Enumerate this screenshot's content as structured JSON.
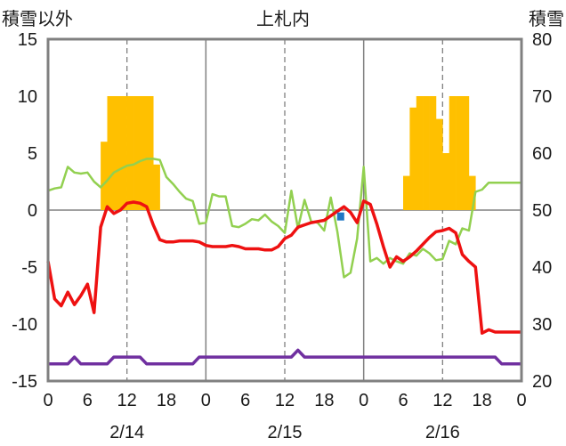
{
  "chart_data": {
    "type": "combo",
    "title": "上札内",
    "left_axis_title": "積雪以外",
    "right_axis_title": "積雪",
    "left_ylim": [
      -15,
      15
    ],
    "left_ticks": [
      15,
      10,
      5,
      0,
      -5,
      -10,
      -15
    ],
    "right_ylim": [
      20,
      80
    ],
    "right_ticks": [
      80,
      70,
      60,
      50,
      40,
      30,
      20
    ],
    "x_range_hours": [
      0,
      72
    ],
    "x_tick_hours": [
      0,
      6,
      12,
      18,
      24,
      30,
      36,
      42,
      48,
      54,
      60,
      66,
      72
    ],
    "x_tick_labels": [
      "0",
      "6",
      "12",
      "18",
      "0",
      "6",
      "12",
      "18",
      "0",
      "6",
      "12",
      "18",
      "0"
    ],
    "date_labels": [
      {
        "text": "2/14",
        "hour": 12
      },
      {
        "text": "2/15",
        "hour": 36
      },
      {
        "text": "2/16",
        "hour": 60
      }
    ],
    "grid": {
      "vertical_dashed_hours": [
        12,
        36,
        60
      ],
      "vertical_solid_hours": [
        24,
        48
      ],
      "horizontal_solid_at": [
        0
      ]
    },
    "colors": {
      "precip_bar": "#ffc000",
      "temperature_line": "#ee1111",
      "green_line": "#92d050",
      "snow_depth_line": "#7030a0",
      "marker": "#1f77c4",
      "frame": "#808080"
    },
    "series": [
      {
        "kind": "bar",
        "axis": "left",
        "color": "#ffc000",
        "x": [
          8.5,
          9.5,
          10.5,
          11.5,
          12.5,
          13.5,
          14.5,
          15.5,
          16.5,
          54.5,
          55.5,
          56.5,
          57.5,
          58.5,
          59.5,
          60.5,
          61.5,
          62.5,
          63.5,
          64.5,
          65.5,
          66.5
        ],
        "values": [
          6,
          10,
          10,
          10,
          10,
          10,
          10,
          10,
          4,
          3,
          9,
          10,
          10,
          10,
          8,
          5,
          10,
          10,
          10,
          3,
          0,
          0
        ]
      },
      {
        "kind": "line",
        "axis": "left",
        "color": "#92d050",
        "x": [
          0,
          1,
          2,
          3,
          4,
          5,
          6,
          7,
          8,
          9,
          10,
          11,
          12,
          13,
          14,
          15,
          16,
          17,
          18,
          19,
          20,
          21,
          22,
          23,
          24,
          25,
          26,
          27,
          28,
          29,
          30,
          31,
          32,
          33,
          34,
          35,
          36,
          37,
          38,
          39,
          40,
          41,
          42,
          43,
          44,
          45,
          46,
          47,
          48,
          49,
          50,
          51,
          52,
          53,
          54,
          55,
          56,
          57,
          58,
          59,
          60,
          61,
          62,
          63,
          64,
          65,
          66,
          67,
          68,
          69,
          70,
          71,
          72
        ],
        "values": [
          1.7,
          1.9,
          2.0,
          3.8,
          3.3,
          3.2,
          3.3,
          2.5,
          2.0,
          2.6,
          3.3,
          3.6,
          3.9,
          4.0,
          4.3,
          4.5,
          4.5,
          4.4,
          2.9,
          2.3,
          1.6,
          1.0,
          0.8,
          -1.2,
          -1.1,
          1.4,
          1.2,
          1.2,
          -1.4,
          -1.5,
          -1.2,
          -0.8,
          -0.9,
          -0.4,
          -1.0,
          -1.4,
          -2.0,
          1.7,
          -1.6,
          0.9,
          -1.0,
          -1.1,
          -1.8,
          1.1,
          -1.9,
          -5.9,
          -5.5,
          -2.5,
          3.8,
          -4.5,
          -4.2,
          -4.7,
          -4.2,
          -4.5,
          -4.7,
          -3.8,
          -4.0,
          -3.4,
          -3.8,
          -4.4,
          -4.3,
          -2.7,
          -3.0,
          -1.6,
          -1.8,
          1.6,
          1.8,
          2.4,
          2.4,
          2.4,
          2.4,
          2.4,
          2.4
        ]
      },
      {
        "kind": "line",
        "axis": "left",
        "color": "#ee1111",
        "x": [
          0,
          1,
          2,
          3,
          4,
          5,
          6,
          7,
          8,
          9,
          10,
          11,
          12,
          13,
          14,
          15,
          16,
          17,
          18,
          19,
          20,
          21,
          22,
          23,
          24,
          25,
          26,
          27,
          28,
          29,
          30,
          31,
          32,
          33,
          34,
          35,
          36,
          37,
          38,
          39,
          40,
          41,
          42,
          43,
          44,
          45,
          46,
          47,
          48,
          49,
          50,
          51,
          52,
          53,
          54,
          55,
          56,
          57,
          58,
          59,
          60,
          61,
          62,
          63,
          64,
          65,
          66,
          67,
          68,
          69,
          70,
          71,
          72
        ],
        "values": [
          -4.5,
          -7.8,
          -8.4,
          -7.2,
          -8.3,
          -7.5,
          -6.5,
          -9.0,
          -1.5,
          0.3,
          -0.3,
          0.0,
          0.6,
          0.7,
          0.6,
          0.3,
          -1.3,
          -2.6,
          -2.8,
          -2.8,
          -2.7,
          -2.7,
          -2.7,
          -2.8,
          -3.1,
          -3.2,
          -3.2,
          -3.2,
          -3.1,
          -3.2,
          -3.4,
          -3.4,
          -3.4,
          -3.5,
          -3.5,
          -3.2,
          -2.5,
          -2.2,
          -1.5,
          -1.3,
          -1.1,
          -1.0,
          -0.9,
          -0.5,
          -0.1,
          0.3,
          -0.2,
          -1.1,
          0.8,
          0.5,
          -1.2,
          -3.2,
          -5.0,
          -4.1,
          -4.5,
          -4.1,
          -3.6,
          -3.0,
          -2.4,
          -1.9,
          -1.8,
          -1.6,
          -2.0,
          -3.9,
          -4.5,
          -5.0,
          -10.8,
          -10.5,
          -10.7,
          -10.7,
          -10.7,
          -10.7,
          -10.7
        ]
      },
      {
        "kind": "line",
        "axis": "left",
        "color": "#7030a0",
        "x": [
          0,
          3,
          4,
          5,
          9,
          10,
          14,
          15,
          22,
          23,
          37,
          38,
          39,
          68,
          69,
          72
        ],
        "values": [
          -13.5,
          -13.5,
          -12.9,
          -13.5,
          -13.5,
          -12.9,
          -12.9,
          -13.5,
          -13.5,
          -12.9,
          -12.9,
          -12.3,
          -12.9,
          -12.9,
          -13.5,
          -13.5
        ]
      },
      {
        "kind": "marker",
        "axis": "left",
        "color": "#1f77c4",
        "x": [
          44.5
        ],
        "values": [
          -0.6
        ]
      }
    ]
  }
}
